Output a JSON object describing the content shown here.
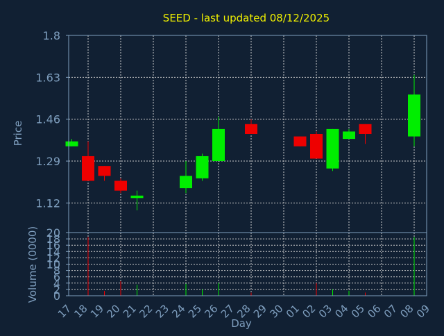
{
  "title": "SEED - last updated 08/12/2025",
  "colors": {
    "background": "#112033",
    "title": "#f0f000",
    "axis_text": "#7f9fbf",
    "axis_label": "#7f9fbf",
    "frame": "#7f9fbf",
    "grid": "#cccccc",
    "up": "#00ee00",
    "down": "#ee0000"
  },
  "chart_data": {
    "type": "candlestick",
    "title": "SEED - last updated 08/12/2025",
    "xlabel": "Day",
    "x_ticks": [
      "17",
      "18",
      "19",
      "20",
      "21",
      "22",
      "23",
      "24",
      "25",
      "26",
      "27",
      "28",
      "29",
      "30",
      "01",
      "02",
      "03",
      "04",
      "05",
      "06",
      "07",
      "08",
      "09"
    ],
    "x_grid_ticks": [
      "18",
      "20",
      "22",
      "24",
      "26",
      "28",
      "30",
      "02",
      "04",
      "06",
      "08"
    ],
    "price": {
      "ylabel": "Price",
      "ylim": [
        1.0,
        1.8
      ],
      "yticks": [
        1.12,
        1.29,
        1.46,
        1.63,
        1.8
      ],
      "grid": true,
      "candles": [
        {
          "day": "17",
          "open": 1.35,
          "high": 1.38,
          "low": 1.35,
          "close": 1.37
        },
        {
          "day": "18",
          "open": 1.31,
          "high": 1.37,
          "low": 1.21,
          "close": 1.21
        },
        {
          "day": "19",
          "open": 1.27,
          "high": 1.27,
          "low": 1.21,
          "close": 1.23
        },
        {
          "day": "20",
          "open": 1.21,
          "high": 1.22,
          "low": 1.16,
          "close": 1.17
        },
        {
          "day": "21",
          "open": 1.14,
          "high": 1.17,
          "low": 1.09,
          "close": 1.15
        },
        {
          "day": "24",
          "open": 1.18,
          "high": 1.29,
          "low": 1.16,
          "close": 1.23
        },
        {
          "day": "25",
          "open": 1.22,
          "high": 1.32,
          "low": 1.21,
          "close": 1.31
        },
        {
          "day": "26",
          "open": 1.29,
          "high": 1.47,
          "low": 1.29,
          "close": 1.42
        },
        {
          "day": "28",
          "open": 1.44,
          "high": 1.46,
          "low": 1.4,
          "close": 1.4
        },
        {
          "day": "01",
          "open": 1.39,
          "high": 1.39,
          "low": 1.35,
          "close": 1.35
        },
        {
          "day": "02",
          "open": 1.4,
          "high": 1.41,
          "low": 1.3,
          "close": 1.3
        },
        {
          "day": "03",
          "open": 1.26,
          "high": 1.42,
          "low": 1.25,
          "close": 1.42
        },
        {
          "day": "04",
          "open": 1.38,
          "high": 1.42,
          "low": 1.38,
          "close": 1.41
        },
        {
          "day": "05",
          "open": 1.44,
          "high": 1.44,
          "low": 1.36,
          "close": 1.4
        },
        {
          "day": "08",
          "open": 1.39,
          "high": 1.64,
          "low": 1.35,
          "close": 1.56
        }
      ]
    },
    "volume": {
      "ylabel": "Volume (0000)",
      "ylim": [
        0,
        20
      ],
      "yticks": [
        0,
        2,
        4,
        6,
        8,
        10,
        12,
        14,
        16,
        18,
        20
      ],
      "grid": true,
      "bars": [
        {
          "day": "18",
          "value": 18.6,
          "direction": "down"
        },
        {
          "day": "19",
          "value": 1.5,
          "direction": "down"
        },
        {
          "day": "20",
          "value": 4.6,
          "direction": "down"
        },
        {
          "day": "21",
          "value": 3.5,
          "direction": "up"
        },
        {
          "day": "24",
          "value": 3.8,
          "direction": "up"
        },
        {
          "day": "25",
          "value": 2.0,
          "direction": "up"
        },
        {
          "day": "26",
          "value": 4.0,
          "direction": "up"
        },
        {
          "day": "28",
          "value": 1.0,
          "direction": "down"
        },
        {
          "day": "02",
          "value": 4.0,
          "direction": "down"
        },
        {
          "day": "03",
          "value": 2.0,
          "direction": "up"
        },
        {
          "day": "04",
          "value": 1.6,
          "direction": "up"
        },
        {
          "day": "05",
          "value": 1.0,
          "direction": "down"
        },
        {
          "day": "08",
          "value": 18.6,
          "direction": "up"
        }
      ]
    }
  }
}
